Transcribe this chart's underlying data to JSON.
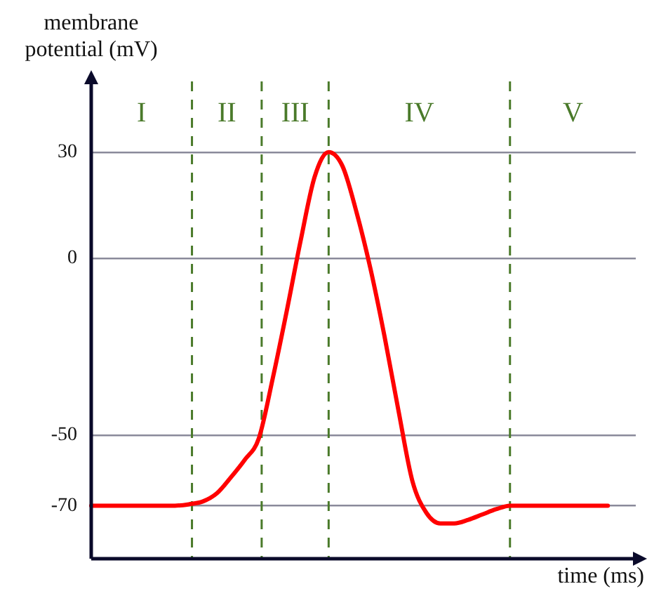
{
  "chart_data": {
    "type": "line",
    "xlabel": "time (ms)",
    "ylabel": "membrane potential (mV)",
    "categories": [
      null,
      null,
      null,
      null,
      null,
      null,
      null,
      null,
      null,
      null,
      null,
      null,
      null,
      null,
      null,
      null,
      null,
      null,
      null,
      null,
      null,
      null,
      null,
      null,
      null,
      null,
      null,
      null,
      null,
      null,
      null,
      null,
      null,
      null,
      null,
      null,
      null,
      null,
      null,
      null
    ],
    "series": [
      {
        "color": "#ff0000",
        "values": [
          -70,
          -70,
          -70,
          -70,
          -70,
          -70,
          -70,
          -69.6,
          -68.8,
          -66.5,
          -62,
          -57,
          -51,
          -34,
          -15,
          5,
          23,
          30,
          26,
          13,
          -3,
          -22,
          -43,
          -63,
          -72,
          -75,
          -75,
          -74,
          -72.5,
          -71,
          -70,
          -70,
          -70,
          -70,
          -70,
          -70,
          -70,
          -70,
          null,
          null
        ]
      }
    ],
    "ylim": [
      -85,
      50
    ],
    "yticks": [
      -70,
      -50,
      0,
      30
    ],
    "grid": "y",
    "tick_labels": "y",
    "marker": "none",
    "line_style": "solid",
    "legend": false,
    "annotations": [
      "I",
      "II",
      "III",
      "IV",
      "V"
    ]
  }
}
